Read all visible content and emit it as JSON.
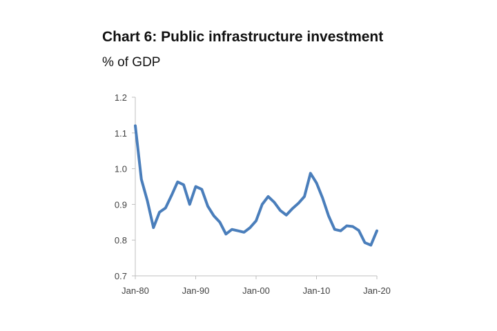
{
  "chart_data": {
    "type": "line",
    "title": "Chart 6: Public infrastructure investment",
    "subtitle": "% of GDP",
    "xlabel": "",
    "ylabel": "",
    "ylim": [
      0.7,
      1.2
    ],
    "yticks": [
      0.7,
      0.8,
      0.9,
      1.0,
      1.1,
      1.2
    ],
    "ytick_labels": [
      "0.7",
      "0.8",
      "0.9",
      "1.0",
      "1.1",
      "1.2"
    ],
    "xlim": [
      1980,
      2020
    ],
    "xticks": [
      1980,
      1990,
      2000,
      2010,
      2020
    ],
    "xtick_labels": [
      "Jan-80",
      "Jan-90",
      "Jan-00",
      "Jan-10",
      "Jan-20"
    ],
    "grid": false,
    "legend": "none",
    "series": [
      {
        "color": "#4A7EBB",
        "x": [
          1980,
          1981,
          1982,
          1983,
          1984,
          1985,
          1986,
          1987,
          1988,
          1989,
          1990,
          1991,
          1992,
          1993,
          1994,
          1995,
          1996,
          1997,
          1998,
          1999,
          2000,
          2001,
          2002,
          2003,
          2004,
          2005,
          2006,
          2007,
          2008,
          2009,
          2010,
          2011,
          2012,
          2013,
          2014,
          2015,
          2016,
          2017,
          2018,
          2019,
          2020
        ],
        "values": [
          1.12,
          0.97,
          0.91,
          0.835,
          0.878,
          0.89,
          0.925,
          0.963,
          0.955,
          0.9,
          0.95,
          0.942,
          0.895,
          0.868,
          0.85,
          0.817,
          0.83,
          0.826,
          0.822,
          0.835,
          0.854,
          0.9,
          0.922,
          0.906,
          0.883,
          0.87,
          0.888,
          0.903,
          0.922,
          0.987,
          0.96,
          0.918,
          0.868,
          0.83,
          0.826,
          0.84,
          0.838,
          0.827,
          0.793,
          0.786,
          0.826
        ]
      }
    ]
  }
}
